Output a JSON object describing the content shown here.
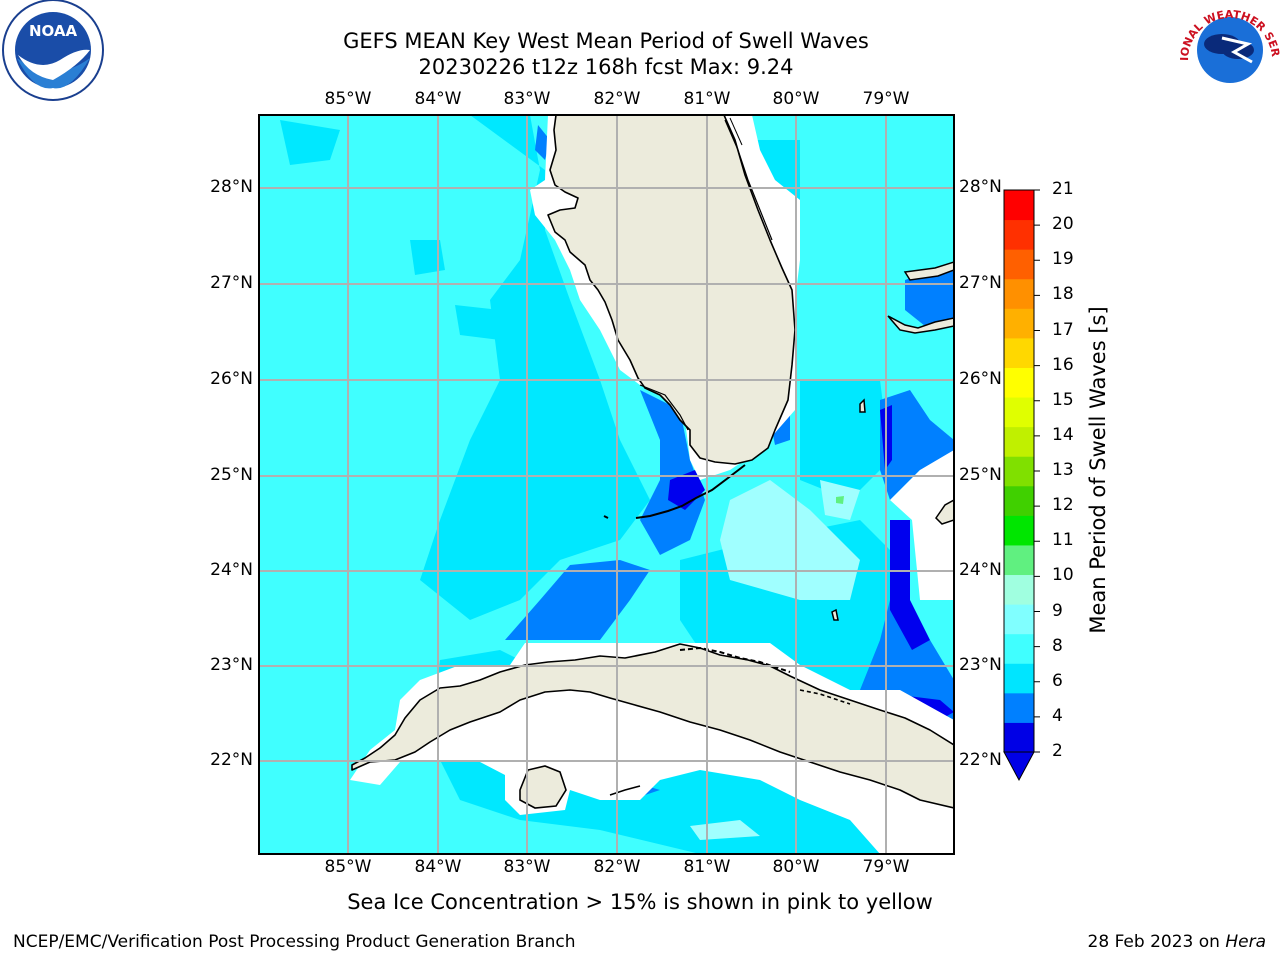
{
  "title_line1": "GEFS MEAN Key West Mean Period of Swell Waves",
  "title_line2": "20230226 t12z 168h fcst   Max: 9.24",
  "longitude_labels": [
    "85°W",
    "84°W",
    "83°W",
    "82°W",
    "81°W",
    "80°W",
    "79°W"
  ],
  "latitude_labels": [
    "28°N",
    "27°N",
    "26°N",
    "25°N",
    "24°N",
    "23°N",
    "22°N"
  ],
  "colorbar": {
    "title": "Mean Period of Swell Waves [s]",
    "ticks": [
      "21",
      "20",
      "19",
      "18",
      "17",
      "16",
      "15",
      "14",
      "13",
      "12",
      "11",
      "10",
      "9",
      "8",
      "6",
      "4",
      "2"
    ],
    "colors": [
      "#0000e6",
      "#0080ff",
      "#00e5ff",
      "#40ffff",
      "#80ffff",
      "#a0ffe0",
      "#60f080",
      "#00e600",
      "#40d000",
      "#80e000",
      "#c0f000",
      "#e0ff00",
      "#ffff00",
      "#ffd800",
      "#ffb000",
      "#ff9000",
      "#ff6000",
      "#ff3000",
      "#ff0000"
    ]
  },
  "note": "Sea Ice Concentration > 15% is shown in pink to yellow",
  "footer_left": "NCEP/EMC/Verification Post Processing Product Generation Branch",
  "footer_date": "28 Feb 2023 on",
  "footer_machine": "Hera",
  "logos": {
    "noaa": "NOAA",
    "nws": "NATIONAL WEATHER SERVICE"
  },
  "palette": {
    "land": "#ecebdc",
    "ocean_base": "#40ffff",
    "grid": "#b0b0b0"
  }
}
